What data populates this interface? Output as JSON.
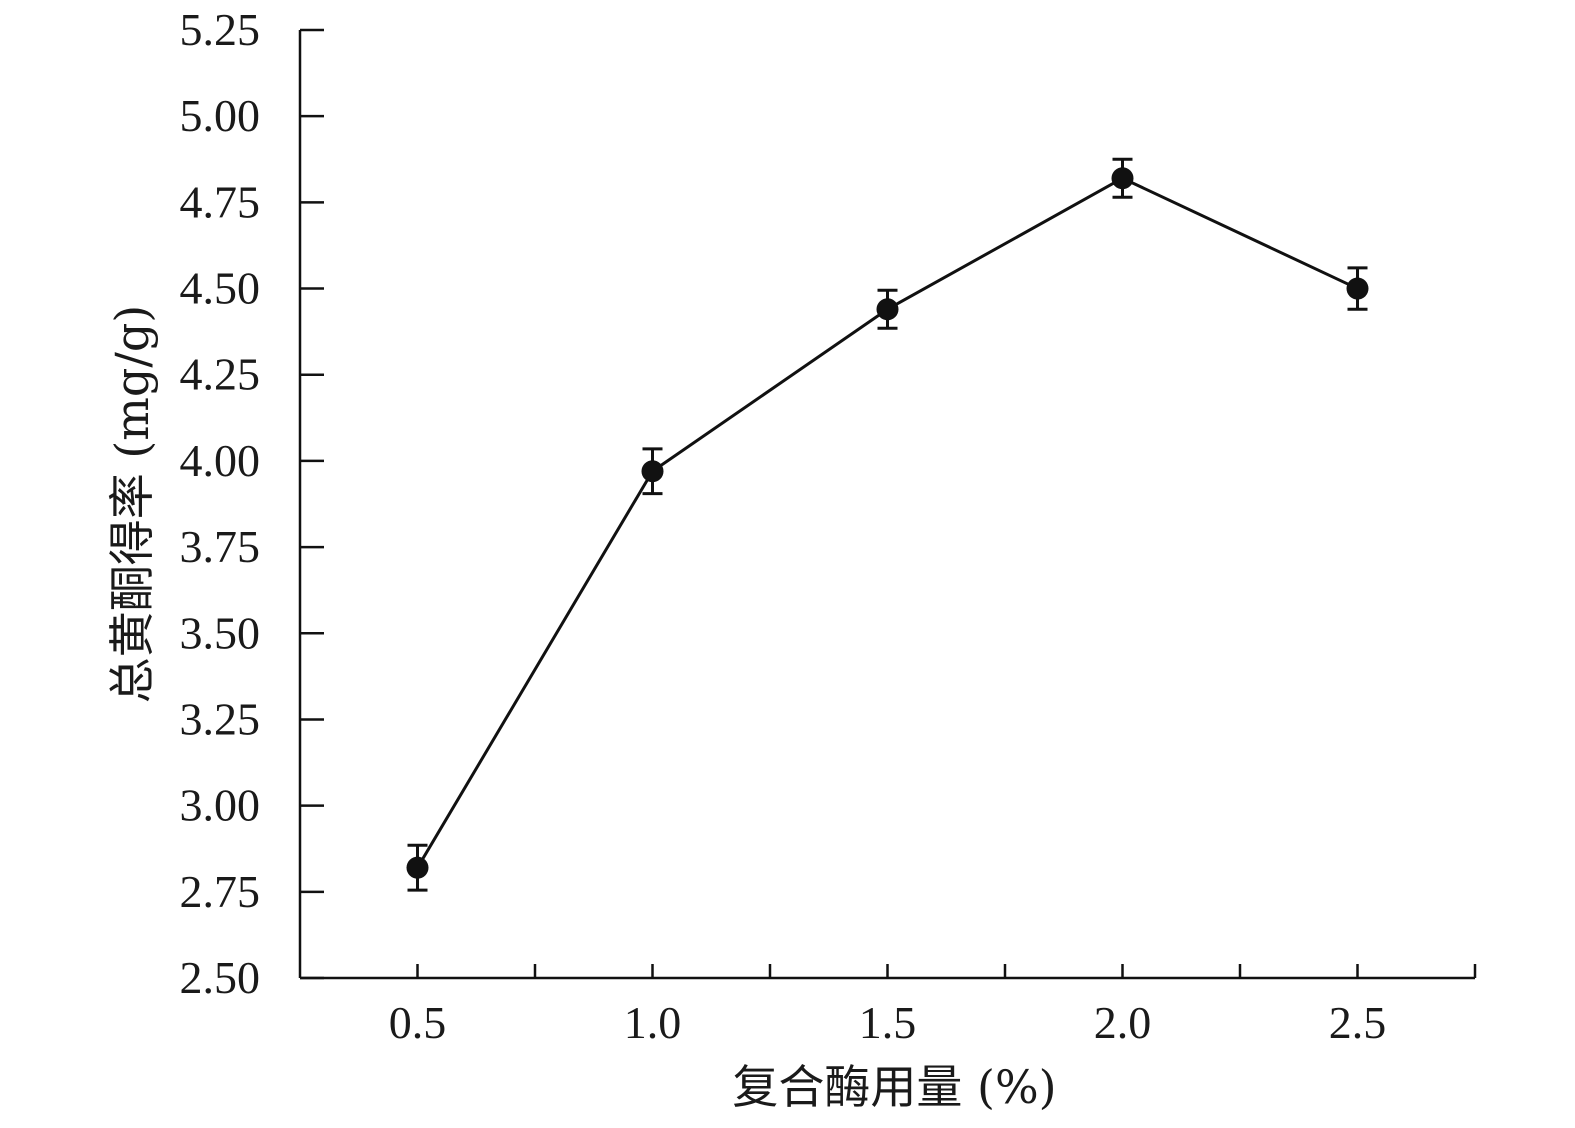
{
  "chart_data": {
    "type": "line",
    "title": "",
    "xlabel": "复合酶用量 (%)",
    "ylabel": "总黄酮得率 (mg/g)",
    "x": [
      0.5,
      1.0,
      1.5,
      2.0,
      2.5
    ],
    "series": [
      {
        "values": [
          2.82,
          3.97,
          4.44,
          4.82,
          4.5
        ],
        "error": [
          0.065,
          0.065,
          0.055,
          0.055,
          0.06
        ]
      }
    ],
    "xlim": [
      0.25,
      2.75
    ],
    "ylim": [
      2.5,
      5.25
    ],
    "xticks": [
      "0.5",
      "1.0",
      "1.5",
      "2.0",
      "2.5"
    ],
    "xticks_minor": [
      0.75,
      1.25,
      1.75,
      2.25,
      2.75
    ],
    "yticks": [
      "2.50",
      "2.75",
      "3.00",
      "3.25",
      "3.50",
      "3.75",
      "4.00",
      "4.25",
      "4.50",
      "4.75",
      "5.00",
      "5.25"
    ],
    "grid": false,
    "legend": "none",
    "colors": {
      "line": "#111111",
      "marker": "#111111"
    }
  }
}
